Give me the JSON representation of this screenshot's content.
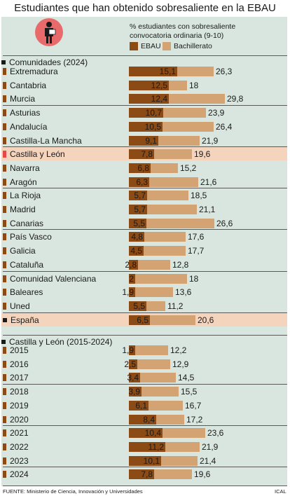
{
  "title": "Estudiantes que han obtenido sobresaliente en la EBAU",
  "legend": {
    "description_line1": "% estudiantes con sobresaliente",
    "description_line2": "convocatoria ordinaria (9-10)",
    "ebau_label": "EBAU",
    "bachillerato_label": "Bachillerato"
  },
  "colors": {
    "ebau": "#8c4a14",
    "bachillerato": "#d4a373",
    "panel": "#d9e6df",
    "highlight": "#f4d4bc",
    "highlight_marker": "#e44848"
  },
  "icon": "student-holding-diploma-icon",
  "chart_data": {
    "type": "bar",
    "orientation": "horizontal",
    "overlay": true,
    "sections": [
      {
        "heading": "Comunidades (2024)",
        "categories": [
          "Extremadura",
          "Cantabria",
          "Murcia",
          "Asturias",
          "Andalucía",
          "Castilla-La Mancha",
          "Castilla y León",
          "Navarra",
          "Aragón",
          "La Rioja",
          "Madrid",
          "Canarias",
          "País Vasco",
          "Galicia",
          "Cataluña",
          "Comunidad Valenciana",
          "Baleares",
          "Uned",
          "España"
        ],
        "highlighted": [
          "Castilla y León",
          "España"
        ],
        "series": [
          {
            "name": "EBAU",
            "values": [
              "15,1",
              "12,5",
              "12,4",
              "10,7",
              "10,5",
              "9,1",
              "7,8",
              "6,8",
              "6,3",
              "5,7",
              "5,7",
              "5,5",
              "4,8",
              "4,5",
              "2,8",
              "2",
              "1,9",
              "5,5",
              "6,5"
            ]
          },
          {
            "name": "Bachillerato",
            "values": [
              "26,3",
              "18",
              "29,8",
              "23,9",
              "26,4",
              "21,9",
              "19,6",
              "15,2",
              "21,6",
              "18,5",
              "21,1",
              "26,6",
              "17,6",
              "17,7",
              "12,8",
              "18",
              "13,6",
              "11,2",
              "20,6"
            ]
          }
        ]
      },
      {
        "heading": "Castilla y León (2015-2024)",
        "categories": [
          "2015",
          "2016",
          "2017",
          "2018",
          "2019",
          "2020",
          "2021",
          "2022",
          "2023",
          "2024"
        ],
        "series": [
          {
            "name": "EBAU",
            "values": [
              "1,9",
              "2,5",
              "3,4",
              "3,9",
              "6,1",
              "8,4",
              "10,4",
              "11,2",
              "10,1",
              "7,8"
            ]
          },
          {
            "name": "Bachillerato",
            "values": [
              "12,2",
              "12,9",
              "14,5",
              "15,5",
              "16,7",
              "17,2",
              "23,6",
              "21,9",
              "21,4",
              "19,6"
            ]
          }
        ]
      }
    ]
  },
  "footer": {
    "source": "FUENTE: Ministerio de Ciencia, Innovación y Universidades",
    "credit": "ICAL"
  }
}
